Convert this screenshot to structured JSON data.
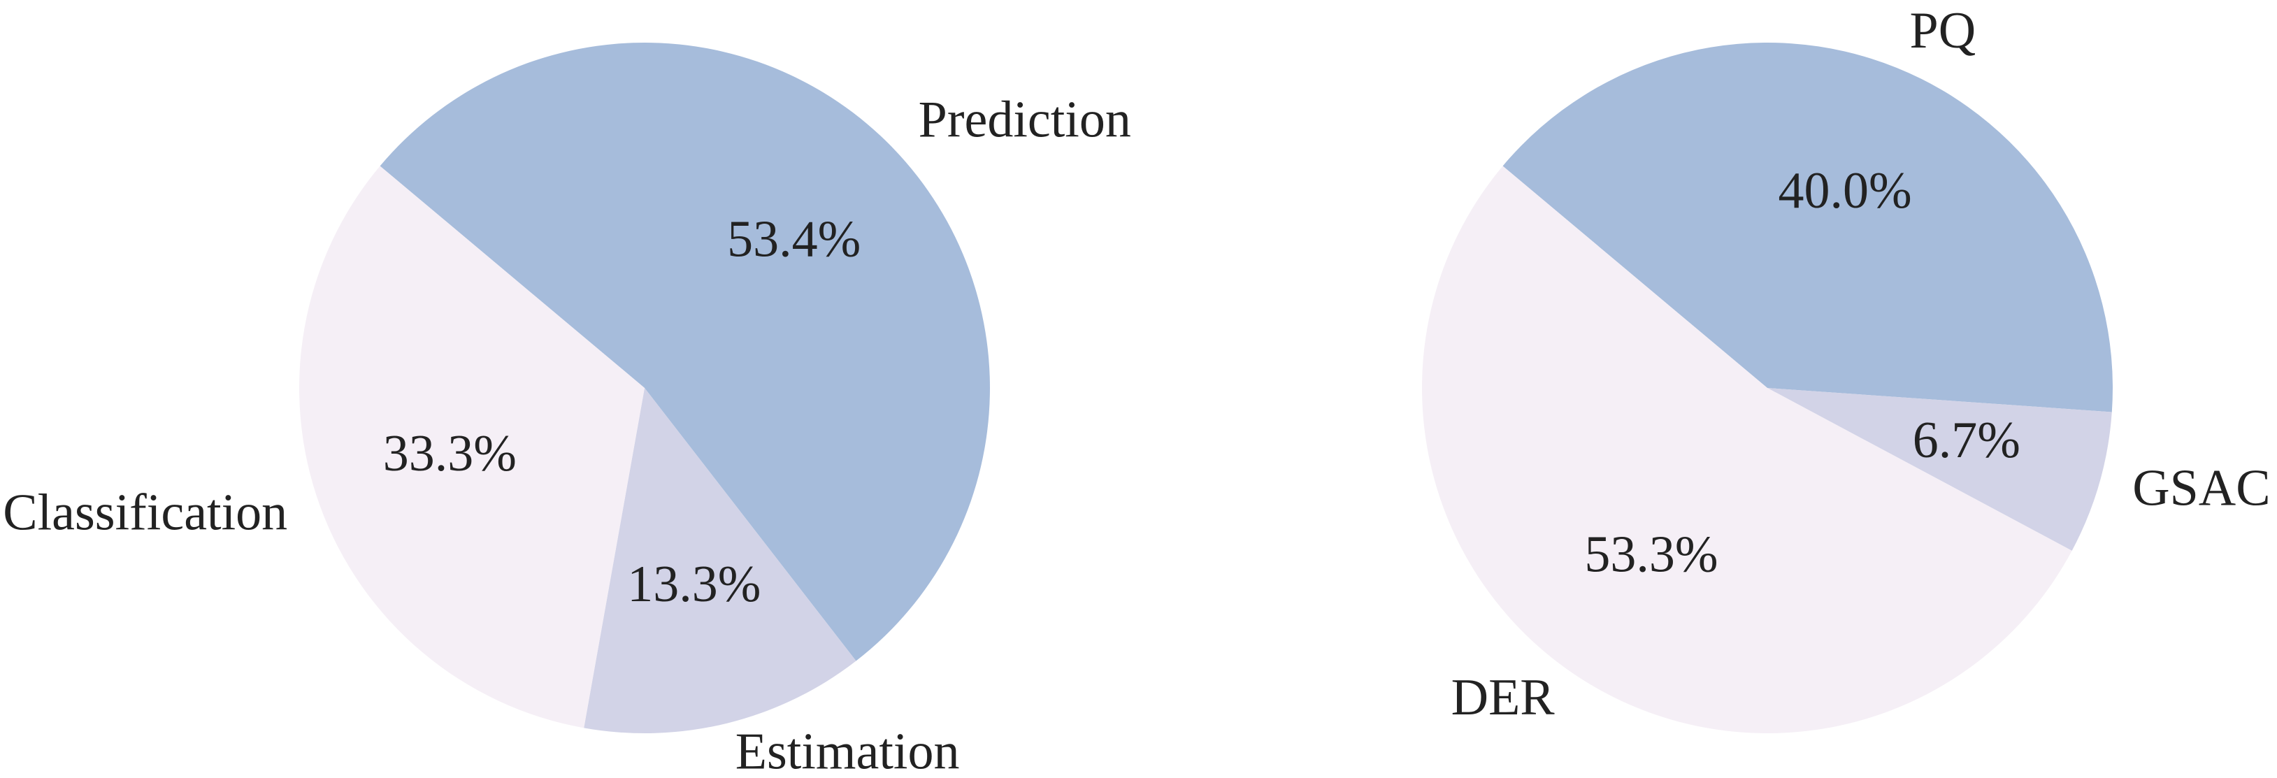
{
  "chart_data": [
    {
      "type": "pie",
      "categories": [
        "Prediction",
        "Estimation",
        "Classification"
      ],
      "values": [
        53.4,
        13.3,
        33.3
      ],
      "value_labels": [
        "53.4%",
        "13.3%",
        "33.3%"
      ],
      "colors": [
        "#a6bcdb",
        "#d2d3e7",
        "#f5eff6"
      ]
    },
    {
      "type": "pie",
      "categories": [
        "PQ",
        "GSAC",
        "DER"
      ],
      "values": [
        40.0,
        6.7,
        53.3
      ],
      "value_labels": [
        "40.0%",
        "6.7%",
        "53.3%"
      ],
      "colors": [
        "#a6bcdb",
        "#d2d3e7",
        "#f5eff6"
      ]
    }
  ]
}
